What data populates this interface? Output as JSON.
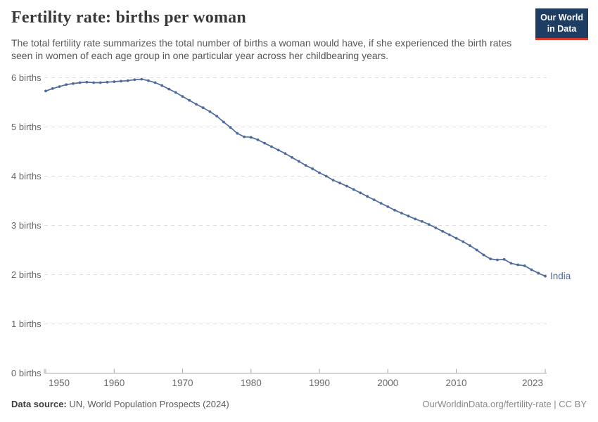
{
  "header": {
    "title": "Fertility rate: births per woman",
    "subtitle": "The total fertility rate summarizes the total number of births a woman would have, if she experienced the birth rates seen in women of each age group in one particular year across her childbearing years."
  },
  "logo": {
    "line1": "Our World",
    "line2": "in Data",
    "bg_color": "#1d3d63",
    "bar_color": "#dc382d"
  },
  "footer": {
    "source_label": "Data source:",
    "source_text": "UN, World Population Prospects (2024)",
    "credit": "OurWorldinData.org/fertility-rate | CC BY"
  },
  "colors": {
    "line": "#4c6a9c",
    "grid": "#dcdcdc",
    "axis": "#a5a5a5",
    "tick_text": "#666666",
    "title_text": "#383838",
    "subtitle_text": "#565656",
    "credit_text": "#888888"
  },
  "chart_data": {
    "type": "line",
    "title": "Fertility rate: births per woman",
    "xlabel": "",
    "ylabel": "births per woman",
    "xlim": [
      1950,
      2023
    ],
    "ylim": [
      0,
      6
    ],
    "grid": "horizontal-dashed",
    "legend_position": "end-of-line-label",
    "x_ticks": [
      1950,
      1960,
      1970,
      1980,
      1990,
      2000,
      2010,
      2023
    ],
    "x_tick_labels": [
      "1950",
      "1960",
      "1970",
      "1980",
      "1990",
      "2000",
      "2010",
      "2023"
    ],
    "y_ticks": [
      0,
      1,
      2,
      3,
      4,
      5,
      6
    ],
    "y_tick_labels": [
      "0 births",
      "1 births",
      "2 births",
      "3 births",
      "4 births",
      "5 births",
      "6 births"
    ],
    "series": [
      {
        "name": "India",
        "color": "#4c6a9c",
        "x": [
          1950,
          1951,
          1952,
          1953,
          1954,
          1955,
          1956,
          1957,
          1958,
          1959,
          1960,
          1961,
          1962,
          1963,
          1964,
          1965,
          1966,
          1967,
          1968,
          1969,
          1970,
          1971,
          1972,
          1973,
          1974,
          1975,
          1976,
          1977,
          1978,
          1979,
          1980,
          1981,
          1982,
          1983,
          1984,
          1985,
          1986,
          1987,
          1988,
          1989,
          1990,
          1991,
          1992,
          1993,
          1994,
          1995,
          1996,
          1997,
          1998,
          1999,
          2000,
          2001,
          2002,
          2003,
          2004,
          2005,
          2006,
          2007,
          2008,
          2009,
          2010,
          2011,
          2012,
          2013,
          2014,
          2015,
          2016,
          2017,
          2018,
          2019,
          2020,
          2021,
          2022,
          2023
        ],
        "values": [
          5.73,
          5.78,
          5.82,
          5.86,
          5.88,
          5.9,
          5.91,
          5.9,
          5.9,
          5.91,
          5.92,
          5.93,
          5.94,
          5.96,
          5.97,
          5.94,
          5.9,
          5.84,
          5.77,
          5.7,
          5.62,
          5.54,
          5.46,
          5.39,
          5.31,
          5.22,
          5.1,
          4.99,
          4.87,
          4.8,
          4.79,
          4.74,
          4.67,
          4.6,
          4.53,
          4.46,
          4.38,
          4.3,
          4.22,
          4.15,
          4.07,
          4.0,
          3.92,
          3.86,
          3.8,
          3.73,
          3.66,
          3.59,
          3.52,
          3.45,
          3.38,
          3.31,
          3.25,
          3.19,
          3.13,
          3.08,
          3.02,
          2.95,
          2.88,
          2.81,
          2.74,
          2.67,
          2.59,
          2.5,
          2.4,
          2.32,
          2.3,
          2.31,
          2.23,
          2.2,
          2.18,
          2.1,
          2.03,
          1.97
        ]
      }
    ]
  }
}
